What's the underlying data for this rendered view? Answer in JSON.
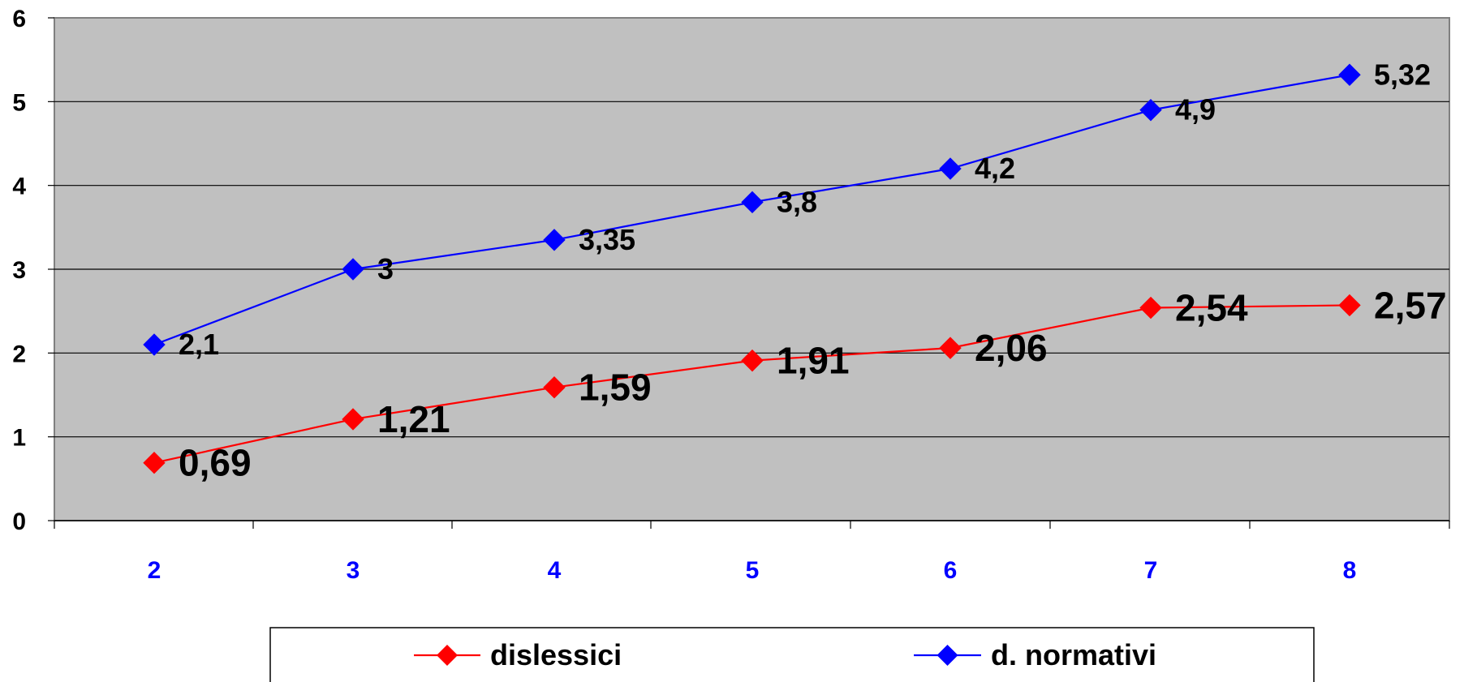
{
  "chart_data": {
    "type": "line",
    "x": [
      2,
      3,
      4,
      5,
      6,
      7,
      8
    ],
    "categories": [
      "2",
      "3",
      "4",
      "5",
      "6",
      "7",
      "8"
    ],
    "ylim": [
      0,
      6
    ],
    "yticks": [
      "0",
      "1",
      "2",
      "3",
      "4",
      "5",
      "6"
    ],
    "grid": true,
    "legend_position": "bottom",
    "plot_background": "#c0c0c0",
    "xtick_color": "#0000ff",
    "series": [
      {
        "name": "dislessici",
        "color": "#ff0000",
        "marker": "diamond",
        "values": [
          0.69,
          1.21,
          1.59,
          1.91,
          2.06,
          2.54,
          2.57
        ],
        "labels": [
          "0,69",
          "1,21",
          "1,59",
          "1,91",
          "2,06",
          "2,54",
          "2,57"
        ]
      },
      {
        "name": "d. normativi",
        "color": "#0000ff",
        "marker": "diamond",
        "values": [
          2.1,
          3,
          3.35,
          3.8,
          4.2,
          4.9,
          5.32
        ],
        "labels": [
          "2,1",
          "3",
          "3,35",
          "3,8",
          "4,2",
          "4,9",
          "5,32"
        ]
      }
    ]
  }
}
